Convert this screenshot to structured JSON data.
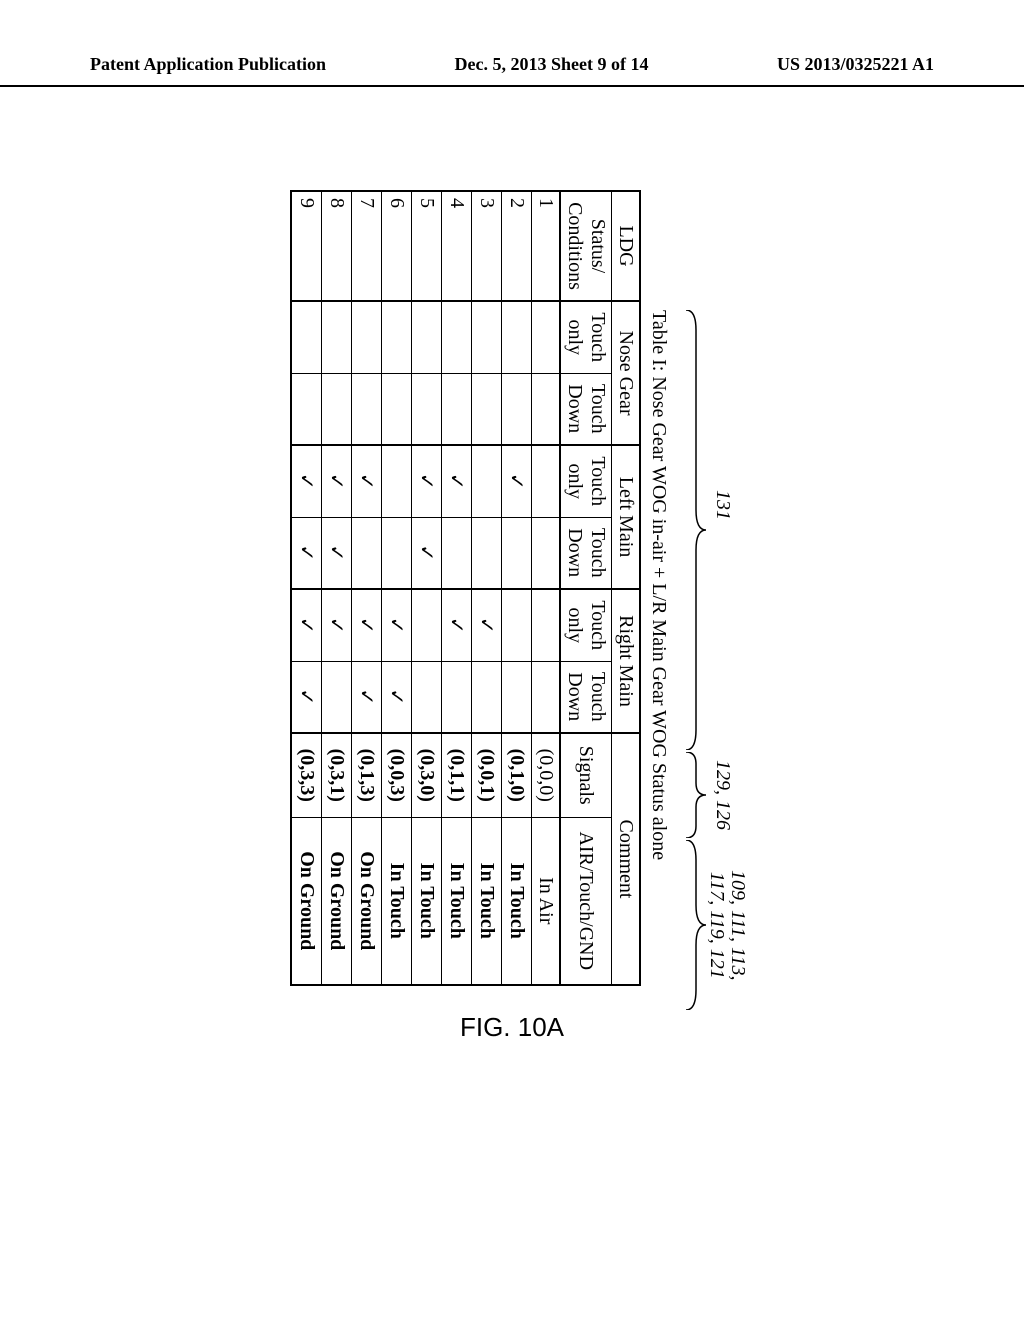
{
  "header": {
    "left": "Patent Application Publication",
    "center": "Dec. 5, 2013   Sheet 9 of 14",
    "right": "US 2013/0325221 A1"
  },
  "brace_labels": {
    "b131": "131",
    "b129": "129, 126",
    "b109": "109, 111, 113,\n117, 119, 121"
  },
  "caption": "Table I: Nose Gear WOG in-air + L/R Main Gear WOG Status alone",
  "headers": {
    "ldg": "LDG",
    "nose": "Nose Gear",
    "left_main": "Left Main",
    "right_main": "Right Main",
    "comment": "Comment",
    "status_cond": "Status/\nConditions",
    "touch_only": "Touch only",
    "touch_down": "Touch Down",
    "signals": "Signals",
    "air_touch_gnd": "AIR/Touch/GND"
  },
  "rows": [
    {
      "n": "1",
      "ng_to": "",
      "ng_td": "",
      "lm_to": "",
      "lm_td": "",
      "rm_to": "",
      "rm_td": "",
      "sig": "(0,0,0)",
      "cmt": "In Air",
      "bold": false
    },
    {
      "n": "2",
      "ng_to": "",
      "ng_td": "",
      "lm_to": "✓",
      "lm_td": "",
      "rm_to": "",
      "rm_td": "",
      "sig": "(0,1,0)",
      "cmt": "In Touch",
      "bold": true
    },
    {
      "n": "3",
      "ng_to": "",
      "ng_td": "",
      "lm_to": "",
      "lm_td": "",
      "rm_to": "✓",
      "rm_td": "",
      "sig": "(0,0,1)",
      "cmt": "In Touch",
      "bold": true
    },
    {
      "n": "4",
      "ng_to": "",
      "ng_td": "",
      "lm_to": "✓",
      "lm_td": "",
      "rm_to": "✓",
      "rm_td": "",
      "sig": "(0,1,1)",
      "cmt": "In Touch",
      "bold": true
    },
    {
      "n": "5",
      "ng_to": "",
      "ng_td": "",
      "lm_to": "✓",
      "lm_td": "✓",
      "rm_to": "",
      "rm_td": "",
      "sig": "(0,3,0)",
      "cmt": "In Touch",
      "bold": true
    },
    {
      "n": "6",
      "ng_to": "",
      "ng_td": "",
      "lm_to": "",
      "lm_td": "",
      "rm_to": "✓",
      "rm_td": "✓",
      "sig": "(0,0,3)",
      "cmt": "In Touch",
      "bold": true
    },
    {
      "n": "7",
      "ng_to": "",
      "ng_td": "",
      "lm_to": "✓",
      "lm_td": "",
      "rm_to": "✓",
      "rm_td": "✓",
      "sig": "(0,1,3)",
      "cmt": "On Ground",
      "bold": true
    },
    {
      "n": "8",
      "ng_to": "",
      "ng_td": "",
      "lm_to": "✓",
      "lm_td": "✓",
      "rm_to": "✓",
      "rm_td": "",
      "sig": "(0,3,1)",
      "cmt": "On Ground",
      "bold": true
    },
    {
      "n": "9",
      "ng_to": "",
      "ng_td": "",
      "lm_to": "✓",
      "lm_td": "✓",
      "rm_to": "✓",
      "rm_td": "✓",
      "sig": "(0,3,3)",
      "cmt": "On Ground",
      "bold": true
    }
  ],
  "figure_label": "FIG. 10A"
}
